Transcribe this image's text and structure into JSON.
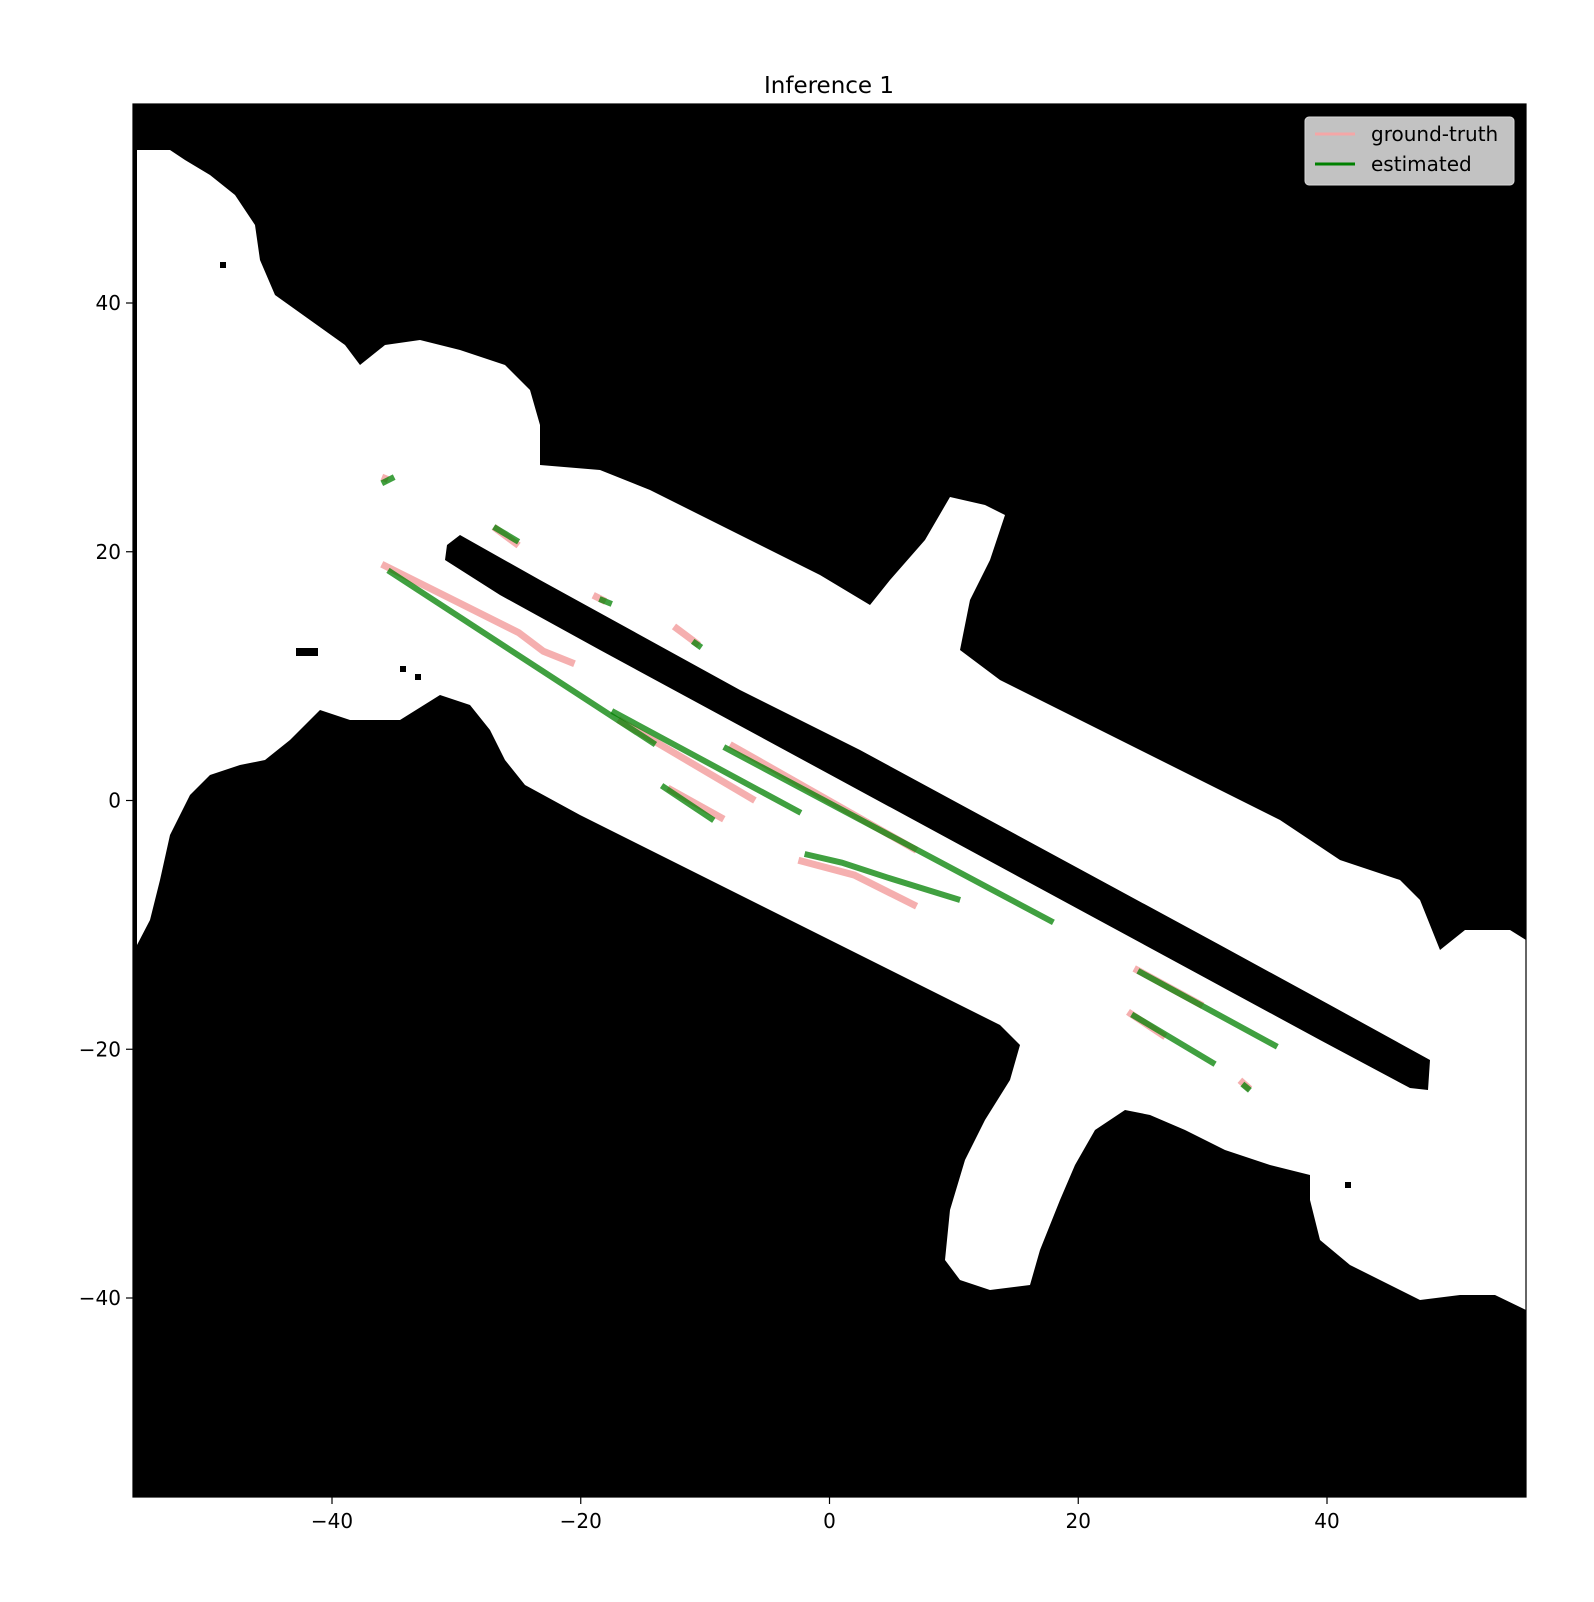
{
  "chart_data": {
    "type": "line",
    "title": "Inference 1",
    "xlabel": "",
    "ylabel": "",
    "xlim": [
      -56,
      56
    ],
    "ylim": [
      -56,
      56
    ],
    "xticks": [
      -40,
      -20,
      0,
      20,
      40
    ],
    "yticks": [
      40,
      20,
      0,
      -20,
      -40
    ],
    "xtick_labels": [
      "−40",
      "−20",
      "0",
      "20",
      "40"
    ],
    "ytick_labels": [
      "40",
      "20",
      "0",
      "−20",
      "−40"
    ],
    "grid": false,
    "legend_position": "top-right",
    "background": "occupancy-grid map (white = free space, black = occupied)",
    "series": [
      {
        "name": "ground-truth",
        "color": "#f4a6a6",
        "segments": [
          [
            [
              -36,
              19
            ],
            [
              -30,
              16
            ],
            [
              -25,
              13.5
            ],
            [
              -23,
              12
            ],
            [
              -20.5,
              11
            ]
          ],
          [
            [
              -36,
              26
            ],
            [
              -35.5,
              25.8
            ]
          ],
          [
            [
              -27,
              22
            ],
            [
              -25,
              20.5
            ]
          ],
          [
            [
              -19,
              16.5
            ],
            [
              -18,
              16
            ]
          ],
          [
            [
              -12.5,
              14
            ],
            [
              -10.5,
              12.5
            ]
          ],
          [
            [
              -17,
              6.5
            ],
            [
              -6,
              0
            ]
          ],
          [
            [
              -13,
              1
            ],
            [
              -8.5,
              -1.5
            ]
          ],
          [
            [
              -8,
              4.5
            ],
            [
              7,
              -4
            ]
          ],
          [
            [
              -2.5,
              -4.8
            ],
            [
              2,
              -6
            ],
            [
              5,
              -7.5
            ],
            [
              7,
              -8.5
            ]
          ],
          [
            [
              24.5,
              -13.5
            ],
            [
              30,
              -16.5
            ]
          ],
          [
            [
              24,
              -17
            ],
            [
              27,
              -19
            ]
          ],
          [
            [
              33,
              -22.5
            ],
            [
              33.8,
              -23.2
            ]
          ]
        ]
      },
      {
        "name": "estimated",
        "color": "#008000",
        "segments": [
          [
            [
              -35.5,
              18.5
            ],
            [
              -14,
              4.5
            ]
          ],
          [
            [
              -36,
              25.5
            ],
            [
              -35,
              26
            ]
          ],
          [
            [
              -27,
              22
            ],
            [
              -25,
              20.8
            ]
          ],
          [
            [
              -18.5,
              16.2
            ],
            [
              -17.5,
              15.8
            ]
          ],
          [
            [
              -11,
              12.8
            ],
            [
              -10.3,
              12.3
            ]
          ],
          [
            [
              -17.5,
              7.2
            ],
            [
              -2.3,
              -1
            ]
          ],
          [
            [
              -13.5,
              1.2
            ],
            [
              -9.3,
              -1.6
            ]
          ],
          [
            [
              -8.5,
              4.3
            ],
            [
              18,
              -9.8
            ]
          ],
          [
            [
              -2,
              -4.3
            ],
            [
              1,
              -5
            ],
            [
              5,
              -6.3
            ],
            [
              10.5,
              -8
            ]
          ],
          [
            [
              24.8,
              -13.7
            ],
            [
              36,
              -19.8
            ]
          ],
          [
            [
              24.3,
              -17.2
            ],
            [
              31,
              -21.2
            ]
          ],
          [
            [
              33.2,
              -22.8
            ],
            [
              33.8,
              -23.3
            ]
          ]
        ]
      }
    ]
  }
}
